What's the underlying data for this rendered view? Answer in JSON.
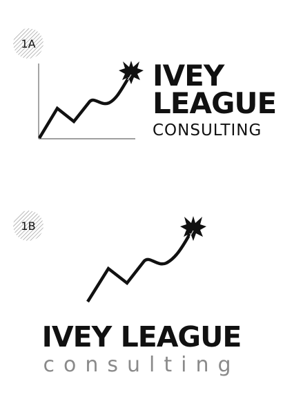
{
  "colors": {
    "ink": "#111111",
    "gray_text": "#8a8a8a",
    "axis": "#666666",
    "background": "#ffffff"
  },
  "option_a": {
    "badge_label": "1A",
    "title_line1": "IVEY",
    "title_line2": "LEAGUE",
    "subtitle": "CONSULTING",
    "icons": [
      "ivy-leaf-icon",
      "chart-line-icon"
    ]
  },
  "option_b": {
    "badge_label": "1B",
    "title": "IVEY LEAGUE",
    "subtitle": "consulting",
    "icons": [
      "ivy-leaf-icon",
      "chart-line-icon"
    ]
  }
}
